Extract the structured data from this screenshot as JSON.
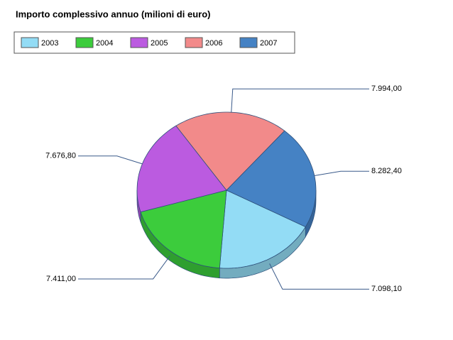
{
  "chart_data": {
    "type": "pie",
    "title": "Importo complessivo annuo (milioni di euro)",
    "categories": [
      "2003",
      "2004",
      "2005",
      "2006",
      "2007"
    ],
    "values": [
      7098.1,
      7411.0,
      7676.8,
      7994.0,
      8282.4
    ],
    "value_labels": [
      "7.098,10",
      "7.411,00",
      "7.676,80",
      "7.994,00",
      "8.282,40"
    ],
    "colors": [
      "#93dcf5",
      "#3ccc3c",
      "#bb5be0",
      "#f28a8a",
      "#4582c4"
    ],
    "legend": "top"
  }
}
